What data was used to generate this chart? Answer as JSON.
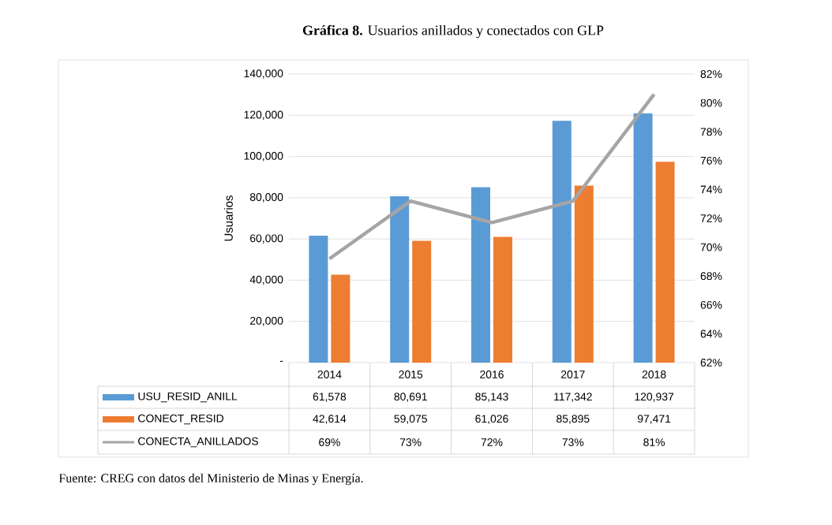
{
  "chart_data": {
    "type": "bar",
    "title": "**Gráfica 8.** Usuarios anillados y conectados con GLP",
    "ylabel": "Usuarios",
    "categories": [
      "2014",
      "2015",
      "2016",
      "2017",
      "2018"
    ],
    "series": [
      {
        "name": "USU_RESID_ANILL",
        "color": "#5b9bd5",
        "values": [
          61578,
          80691,
          85143,
          117342,
          120937
        ],
        "value_labels": [
          "61,578",
          "80,691",
          "85,143",
          "117,342",
          "120,937"
        ]
      },
      {
        "name": "CONECT_RESID",
        "color": "#ed7d31",
        "values": [
          42614,
          59075,
          61026,
          85895,
          97471
        ],
        "value_labels": [
          "42,614",
          "59,075",
          "61,026",
          "85,895",
          "97,471"
        ]
      },
      {
        "name": "CONECTA_ANILLADOS",
        "type": "line",
        "axis": "y2",
        "color": "#a5a5a5",
        "values": [
          69.2,
          73.2,
          71.7,
          73.2,
          80.6
        ],
        "value_labels": [
          "69%",
          "73%",
          "72%",
          "73%",
          "81%"
        ]
      }
    ],
    "ylim": [
      0,
      140000
    ],
    "yticks": [
      {
        "value": 0,
        "label": "-"
      },
      {
        "value": 20000,
        "label": "20,000"
      },
      {
        "value": 40000,
        "label": "40,000"
      },
      {
        "value": 60000,
        "label": "60,000"
      },
      {
        "value": 80000,
        "label": "80,000"
      },
      {
        "value": 100000,
        "label": "100,000"
      },
      {
        "value": 120000,
        "label": "120,000"
      },
      {
        "value": 140000,
        "label": "140,000"
      }
    ],
    "y2lim": [
      62,
      82
    ],
    "y2ticks": [
      {
        "value": 62,
        "label": "62%"
      },
      {
        "value": 64,
        "label": "64%"
      },
      {
        "value": 66,
        "label": "66%"
      },
      {
        "value": 68,
        "label": "68%"
      },
      {
        "value": 70,
        "label": "70%"
      },
      {
        "value": 72,
        "label": "72%"
      },
      {
        "value": 74,
        "label": "74%"
      },
      {
        "value": 76,
        "label": "76%"
      },
      {
        "value": 78,
        "label": "78%"
      },
      {
        "value": 80,
        "label": "80%"
      },
      {
        "value": 82,
        "label": "82%"
      }
    ],
    "grid": "y",
    "legend": "bottom",
    "annotations": [
      "Fuente: CREG con datos del Ministerio de Minas y Energía."
    ]
  }
}
